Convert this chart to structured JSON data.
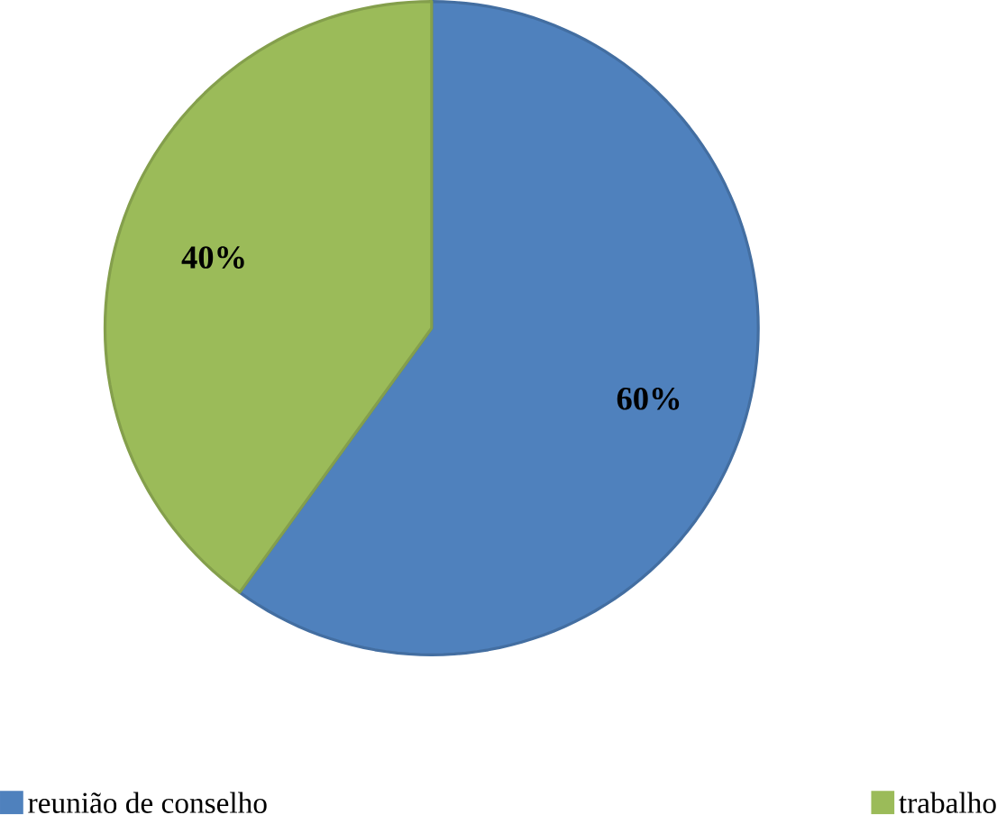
{
  "chart_data": {
    "type": "pie",
    "categories": [
      "reunião de conselho",
      "trabalho"
    ],
    "values": [
      60,
      40
    ],
    "value_labels": [
      "60%",
      "40%"
    ],
    "colors": [
      "#4f81bd",
      "#9bbb59"
    ],
    "legend": "bottom"
  }
}
